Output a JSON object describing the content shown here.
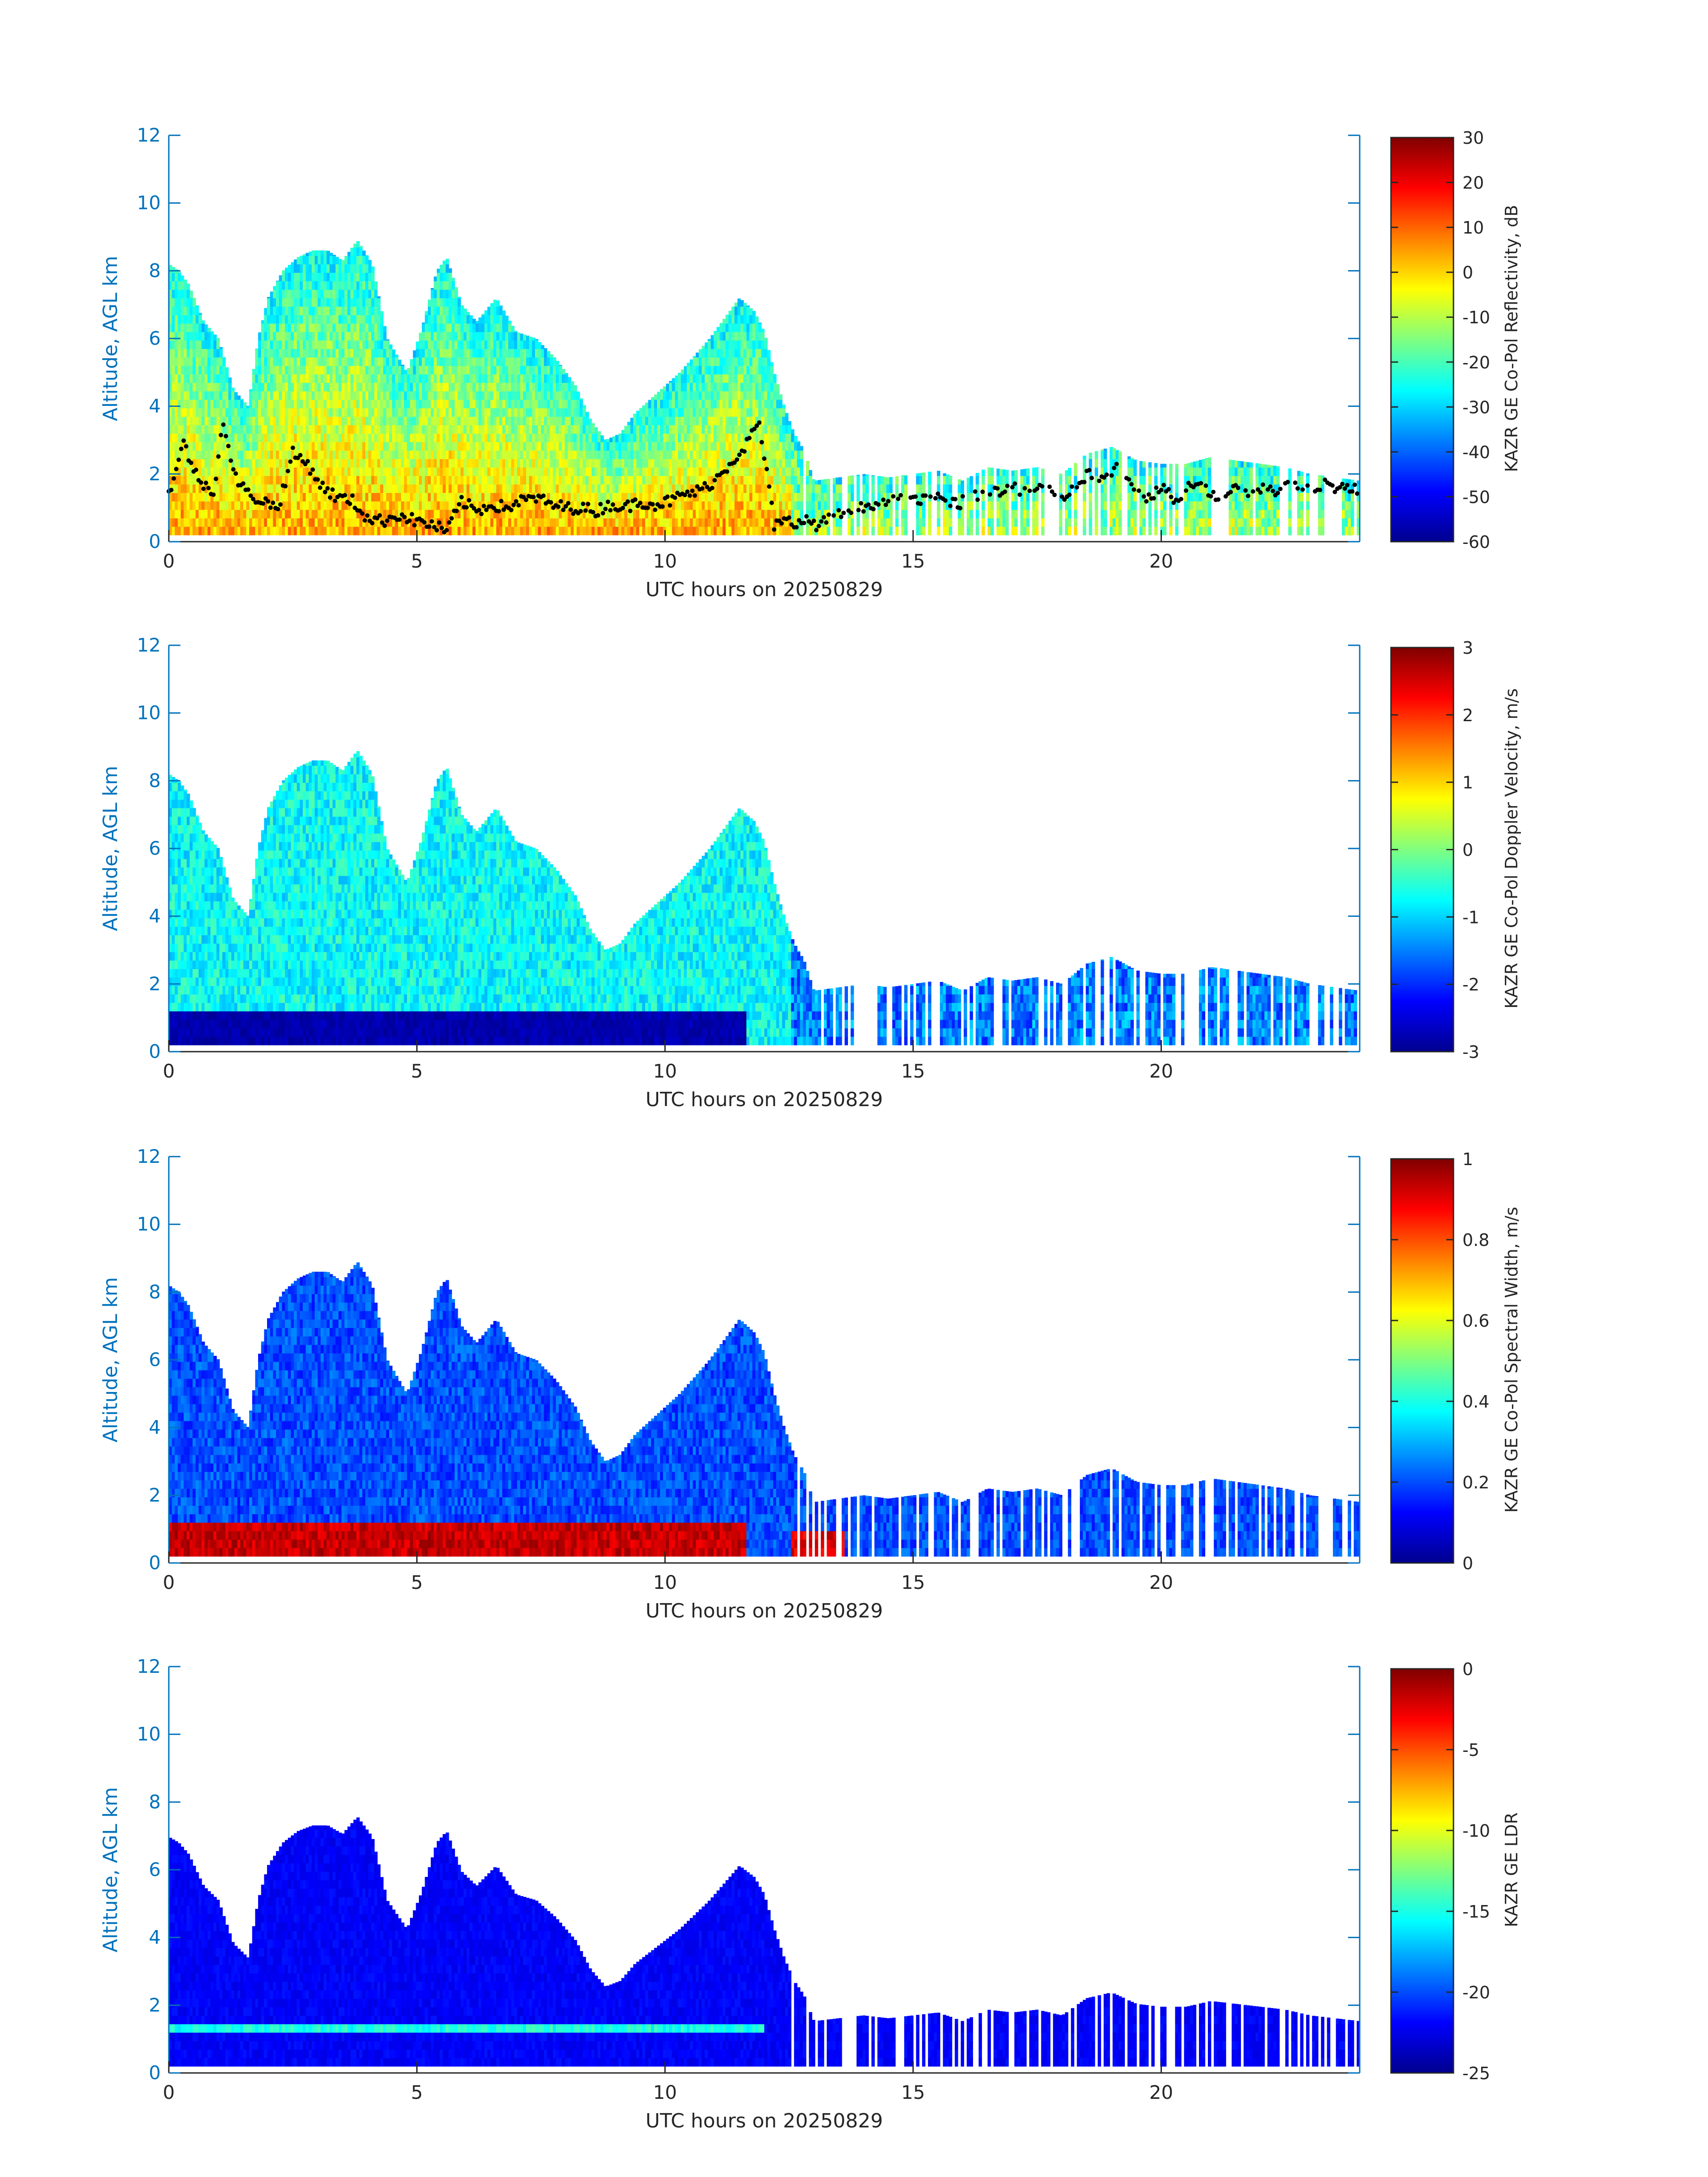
{
  "colors": {
    "axis_blue": "#0072BD",
    "axis_dark": "#262626",
    "colormap": "jet"
  },
  "x_axis": {
    "label": "UTC hours on 20250829",
    "range": [
      0,
      24
    ],
    "ticks": [
      "0",
      "5",
      "10",
      "15",
      "20"
    ]
  },
  "y_axis": {
    "label": "Altitude, AGL km",
    "range": [
      0,
      12
    ],
    "ticks": [
      "0",
      "2",
      "4",
      "6",
      "8",
      "10",
      "12"
    ]
  },
  "chart_data": [
    {
      "type": "heatmap",
      "field": "reflectivity",
      "colorbar_label": "KAZR GE Co-Pol Reflectivity, dB",
      "colorbar_range": [
        -60,
        30
      ],
      "colorbar_ticks": [
        "30",
        "20",
        "10",
        "0",
        "-10",
        "-20",
        "-30",
        "-40",
        "-50",
        "-60"
      ],
      "overlay": "cloud base points"
    },
    {
      "type": "heatmap",
      "field": "doppler_velocity",
      "colorbar_label": "KAZR GE Co-Pol Doppler Velocity, m/s",
      "colorbar_range": [
        -3,
        3
      ],
      "colorbar_ticks": [
        "3",
        "2",
        "1",
        "0",
        "-1",
        "-2",
        "-3"
      ]
    },
    {
      "type": "heatmap",
      "field": "spectral_width",
      "colorbar_label": "KAZR GE Co-Pol Spectral Width, m/s",
      "colorbar_range": [
        0,
        1
      ],
      "colorbar_ticks": [
        "1",
        "0.8",
        "0.6",
        "0.4",
        "0.2",
        "0"
      ]
    },
    {
      "type": "heatmap",
      "field": "ldr",
      "colorbar_label": "KAZR GE LDR",
      "colorbar_range": [
        -25,
        0
      ],
      "colorbar_ticks": [
        "0",
        "-5",
        "-10",
        "-15",
        "-20",
        "-25"
      ]
    }
  ],
  "cloud_echo": {
    "tops_km": [
      [
        0.0,
        8.2
      ],
      [
        0.2,
        8.0
      ],
      [
        0.4,
        7.6
      ],
      [
        0.7,
        6.5
      ],
      [
        1.0,
        6.0
      ],
      [
        1.3,
        4.5
      ],
      [
        1.6,
        4.0
      ],
      [
        1.8,
        6.0
      ],
      [
        2.0,
        7.2
      ],
      [
        2.3,
        8.0
      ],
      [
        2.6,
        8.4
      ],
      [
        2.9,
        8.6
      ],
      [
        3.2,
        8.6
      ],
      [
        3.5,
        8.3
      ],
      [
        3.8,
        8.9
      ],
      [
        4.1,
        8.2
      ],
      [
        4.4,
        6.0
      ],
      [
        4.8,
        5.0
      ],
      [
        5.1,
        6.3
      ],
      [
        5.4,
        8.0
      ],
      [
        5.6,
        8.4
      ],
      [
        5.9,
        7.0
      ],
      [
        6.2,
        6.5
      ],
      [
        6.6,
        7.2
      ],
      [
        7.0,
        6.2
      ],
      [
        7.4,
        6.0
      ],
      [
        7.8,
        5.4
      ],
      [
        8.2,
        4.6
      ],
      [
        8.5,
        3.6
      ],
      [
        8.8,
        3.0
      ],
      [
        9.1,
        3.2
      ],
      [
        9.4,
        3.8
      ],
      [
        9.7,
        4.2
      ],
      [
        10.0,
        4.6
      ],
      [
        10.3,
        5.0
      ],
      [
        10.6,
        5.5
      ],
      [
        10.9,
        6.0
      ],
      [
        11.2,
        6.6
      ],
      [
        11.5,
        7.2
      ],
      [
        11.8,
        6.8
      ],
      [
        12.0,
        6.2
      ],
      [
        12.2,
        5.0
      ],
      [
        12.4,
        4.0
      ],
      [
        12.6,
        3.2
      ],
      [
        12.8,
        2.7
      ],
      [
        13.0,
        1.8
      ],
      [
        13.5,
        1.9
      ],
      [
        14.0,
        2.0
      ],
      [
        14.5,
        1.9
      ],
      [
        15.0,
        2.0
      ],
      [
        15.5,
        2.1
      ],
      [
        16.0,
        1.8
      ],
      [
        16.5,
        2.2
      ],
      [
        17.0,
        2.1
      ],
      [
        17.5,
        2.2
      ],
      [
        18.0,
        2.0
      ],
      [
        18.5,
        2.6
      ],
      [
        19.0,
        2.8
      ],
      [
        19.5,
        2.4
      ],
      [
        20.0,
        2.3
      ],
      [
        20.5,
        2.3
      ],
      [
        21.0,
        2.5
      ],
      [
        21.5,
        2.4
      ],
      [
        22.0,
        2.3
      ],
      [
        22.5,
        2.2
      ],
      [
        23.0,
        2.0
      ],
      [
        23.5,
        1.9
      ],
      [
        24.0,
        1.8
      ]
    ],
    "base_km": [
      [
        0.0,
        1.4
      ],
      [
        0.3,
        2.9
      ],
      [
        0.6,
        1.8
      ],
      [
        0.9,
        1.5
      ],
      [
        1.1,
        3.6
      ],
      [
        1.3,
        2.0
      ],
      [
        1.6,
        1.4
      ],
      [
        1.9,
        1.2
      ],
      [
        2.2,
        1.0
      ],
      [
        2.5,
        2.6
      ],
      [
        2.8,
        2.3
      ],
      [
        3.1,
        1.6
      ],
      [
        3.4,
        1.3
      ],
      [
        3.7,
        1.2
      ],
      [
        4.0,
        0.7
      ],
      [
        4.3,
        0.6
      ],
      [
        4.6,
        0.8
      ],
      [
        5.0,
        0.6
      ],
      [
        5.3,
        0.5
      ],
      [
        5.6,
        0.3
      ],
      [
        5.9,
        1.2
      ],
      [
        6.2,
        0.9
      ],
      [
        6.5,
        1.1
      ],
      [
        6.8,
        1.0
      ],
      [
        7.1,
        1.2
      ],
      [
        7.4,
        1.3
      ],
      [
        7.7,
        1.1
      ],
      [
        8.0,
        1.0
      ],
      [
        8.3,
        1.0
      ],
      [
        8.6,
        0.9
      ],
      [
        8.9,
        1.1
      ],
      [
        9.2,
        1.0
      ],
      [
        9.5,
        1.2
      ],
      [
        9.8,
        1.1
      ],
      [
        10.1,
        1.2
      ],
      [
        10.4,
        1.4
      ],
      [
        10.7,
        1.5
      ],
      [
        11.0,
        1.8
      ],
      [
        11.3,
        2.3
      ],
      [
        11.6,
        2.8
      ],
      [
        11.9,
        3.5
      ],
      [
        12.2,
        0.5
      ],
      [
        12.5,
        0.6
      ],
      [
        12.8,
        0.6
      ],
      [
        13.1,
        0.5
      ],
      [
        13.4,
        0.7
      ],
      [
        13.7,
        0.9
      ],
      [
        14.0,
        1.0
      ],
      [
        14.3,
        1.2
      ],
      [
        14.6,
        1.3
      ],
      [
        14.9,
        1.4
      ],
      [
        15.2,
        1.2
      ],
      [
        15.5,
        1.3
      ],
      [
        15.8,
        1.1
      ],
      [
        16.1,
        1.2
      ],
      [
        16.4,
        1.5
      ],
      [
        16.7,
        1.4
      ],
      [
        17.0,
        1.6
      ],
      [
        17.3,
        1.5
      ],
      [
        17.6,
        1.7
      ],
      [
        17.9,
        1.2
      ],
      [
        18.2,
        1.5
      ],
      [
        18.5,
        2.0
      ],
      [
        18.8,
        1.8
      ],
      [
        19.1,
        2.2
      ],
      [
        19.4,
        1.6
      ],
      [
        19.7,
        1.3
      ],
      [
        20.0,
        1.6
      ],
      [
        20.3,
        1.2
      ],
      [
        20.6,
        1.8
      ],
      [
        20.9,
        1.5
      ],
      [
        21.2,
        1.3
      ],
      [
        21.5,
        1.7
      ],
      [
        21.8,
        1.4
      ],
      [
        22.1,
        1.6
      ],
      [
        22.4,
        1.5
      ],
      [
        22.7,
        1.7
      ],
      [
        23.0,
        1.6
      ],
      [
        23.3,
        1.7
      ],
      [
        23.6,
        1.6
      ],
      [
        24.0,
        1.5
      ]
    ]
  }
}
